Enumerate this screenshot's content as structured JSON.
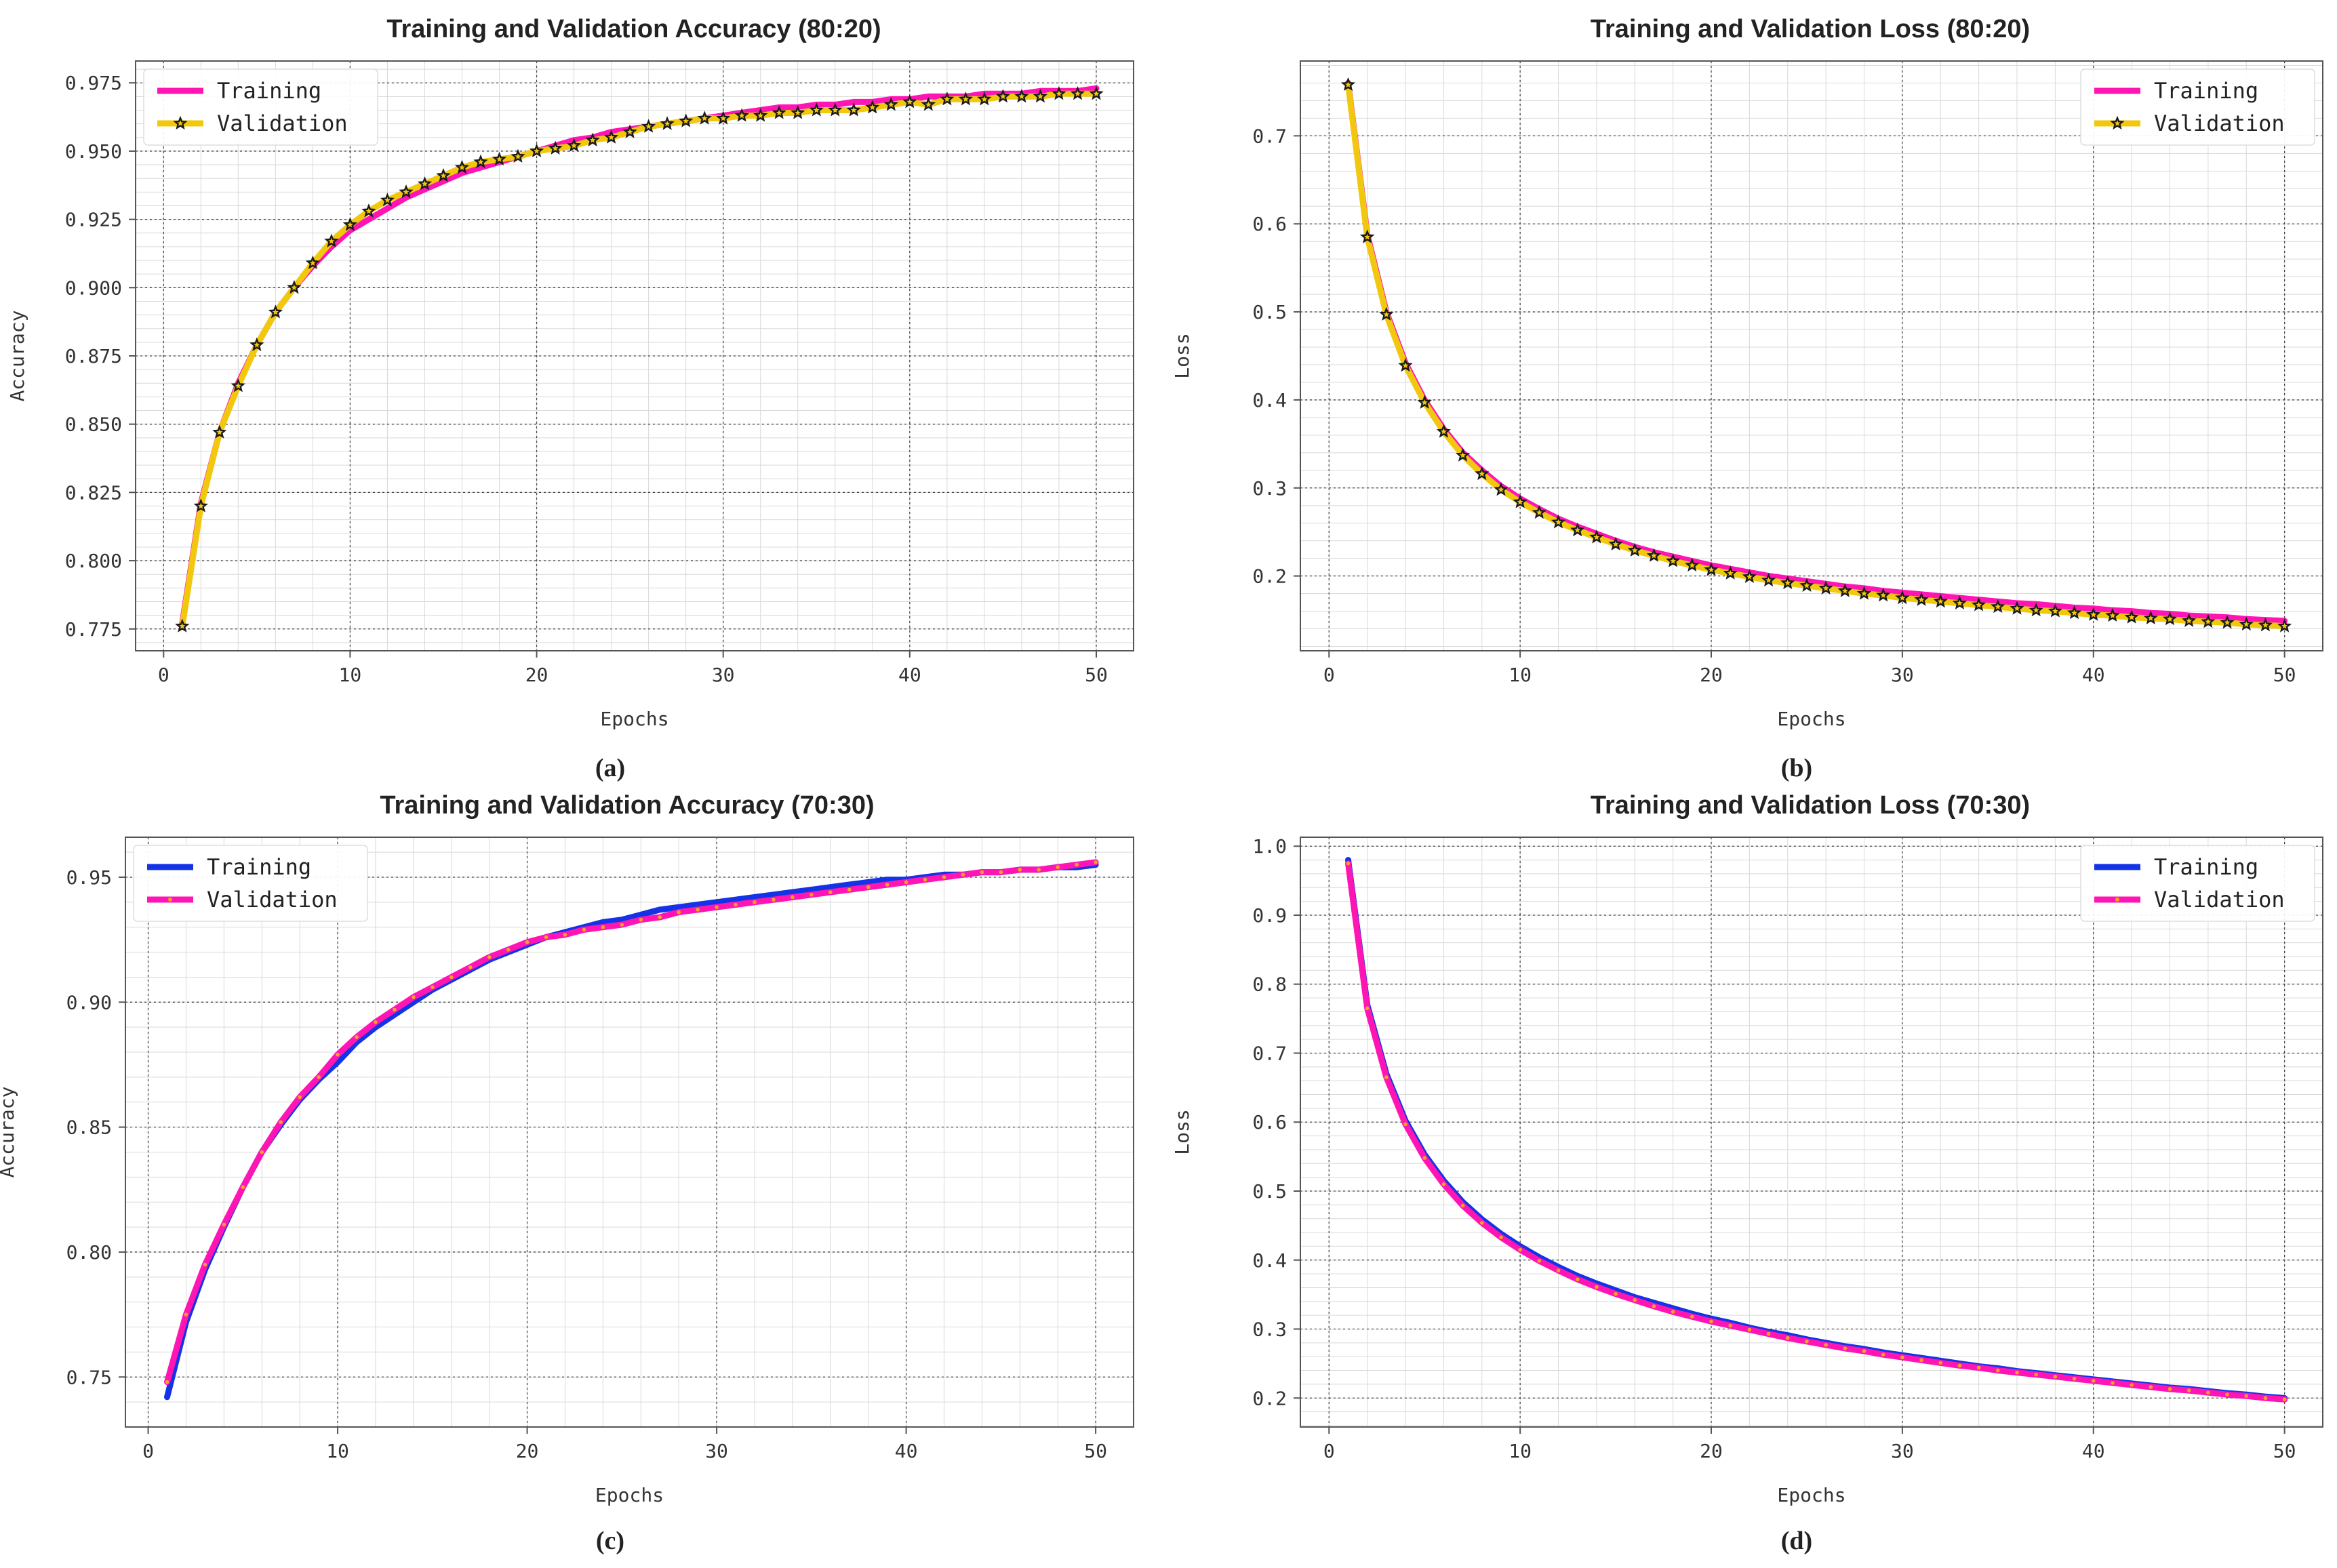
{
  "colors": {
    "magenta": "#ff14b4",
    "gold": "#f2c80f",
    "blue": "#1433e6",
    "marker_dark": "#1a1a1a",
    "marker_orange": "#f5a623"
  },
  "chart_data": [
    {
      "type": "line",
      "title": "Training and Validation Accuracy (80:20)",
      "caption": "(a)",
      "xlabel": "Epochs",
      "ylabel": "Accuracy",
      "xlim": [
        -1.5,
        52
      ],
      "ylim": [
        0.767,
        0.983
      ],
      "xticks": [
        0,
        10,
        20,
        30,
        40,
        50
      ],
      "xticklabels": [
        "0",
        "10",
        "20",
        "30",
        "40",
        "50"
      ],
      "yticks": [
        0.775,
        0.8,
        0.825,
        0.85,
        0.875,
        0.9,
        0.925,
        0.95,
        0.975
      ],
      "yticklabels": [
        "0.775",
        "0.800",
        "0.825",
        "0.850",
        "0.875",
        "0.900",
        "0.925",
        "0.950",
        "0.975"
      ],
      "legend_loc": "top-left",
      "x": [
        1,
        2,
        3,
        4,
        5,
        6,
        7,
        8,
        9,
        10,
        11,
        12,
        13,
        14,
        15,
        16,
        17,
        18,
        19,
        20,
        21,
        22,
        23,
        24,
        25,
        26,
        27,
        28,
        29,
        30,
        31,
        32,
        33,
        34,
        35,
        36,
        37,
        38,
        39,
        40,
        41,
        42,
        43,
        44,
        45,
        46,
        47,
        48,
        49,
        50
      ],
      "series": [
        {
          "name": "Training",
          "color": "#ff14b4",
          "marker": "none",
          "values": [
            0.777,
            0.821,
            0.847,
            0.865,
            0.879,
            0.891,
            0.9,
            0.908,
            0.915,
            0.921,
            0.925,
            0.929,
            0.933,
            0.936,
            0.939,
            0.942,
            0.944,
            0.946,
            0.948,
            0.95,
            0.952,
            0.954,
            0.955,
            0.957,
            0.958,
            0.959,
            0.96,
            0.961,
            0.962,
            0.963,
            0.964,
            0.965,
            0.966,
            0.966,
            0.967,
            0.967,
            0.968,
            0.968,
            0.969,
            0.969,
            0.97,
            0.97,
            0.97,
            0.971,
            0.971,
            0.971,
            0.972,
            0.972,
            0.972,
            0.973
          ]
        },
        {
          "name": "Validation",
          "color": "#f2c80f",
          "marker": "star",
          "values": [
            0.776,
            0.82,
            0.847,
            0.864,
            0.879,
            0.891,
            0.9,
            0.909,
            0.917,
            0.923,
            0.928,
            0.932,
            0.935,
            0.938,
            0.941,
            0.944,
            0.946,
            0.947,
            0.948,
            0.95,
            0.951,
            0.952,
            0.954,
            0.955,
            0.957,
            0.959,
            0.96,
            0.961,
            0.962,
            0.962,
            0.963,
            0.963,
            0.964,
            0.964,
            0.965,
            0.965,
            0.965,
            0.966,
            0.967,
            0.968,
            0.967,
            0.969,
            0.969,
            0.969,
            0.97,
            0.97,
            0.97,
            0.971,
            0.971,
            0.971
          ]
        }
      ]
    },
    {
      "type": "line",
      "title": "Training and Validation Loss (80:20)",
      "caption": "(b)",
      "xlabel": "Epochs",
      "ylabel": "Loss",
      "xlim": [
        -1.5,
        52
      ],
      "ylim": [
        0.115,
        0.785
      ],
      "xticks": [
        0,
        10,
        20,
        30,
        40,
        50
      ],
      "xticklabels": [
        "0",
        "10",
        "20",
        "30",
        "40",
        "50"
      ],
      "yticks": [
        0.2,
        0.3,
        0.4,
        0.5,
        0.6,
        0.7
      ],
      "yticklabels": [
        "0.2",
        "0.3",
        "0.4",
        "0.5",
        "0.6",
        "0.7"
      ],
      "legend_loc": "top-right",
      "x": [
        1,
        2,
        3,
        4,
        5,
        6,
        7,
        8,
        9,
        10,
        11,
        12,
        13,
        14,
        15,
        16,
        17,
        18,
        19,
        20,
        21,
        22,
        23,
        24,
        25,
        26,
        27,
        28,
        29,
        30,
        31,
        32,
        33,
        34,
        35,
        36,
        37,
        38,
        39,
        40,
        41,
        42,
        43,
        44,
        45,
        46,
        47,
        48,
        49,
        50
      ],
      "series": [
        {
          "name": "Training",
          "color": "#ff14b4",
          "marker": "none",
          "values": [
            0.76,
            0.588,
            0.5,
            0.442,
            0.4,
            0.367,
            0.34,
            0.32,
            0.302,
            0.288,
            0.276,
            0.265,
            0.256,
            0.248,
            0.24,
            0.233,
            0.227,
            0.222,
            0.217,
            0.212,
            0.208,
            0.204,
            0.2,
            0.197,
            0.194,
            0.191,
            0.188,
            0.186,
            0.183,
            0.181,
            0.179,
            0.177,
            0.175,
            0.173,
            0.171,
            0.169,
            0.168,
            0.166,
            0.164,
            0.163,
            0.161,
            0.16,
            0.158,
            0.157,
            0.155,
            0.154,
            0.153,
            0.151,
            0.15,
            0.149
          ]
        },
        {
          "name": "Validation",
          "color": "#f2c80f",
          "marker": "star",
          "values": [
            0.758,
            0.585,
            0.497,
            0.439,
            0.397,
            0.364,
            0.337,
            0.316,
            0.298,
            0.284,
            0.272,
            0.261,
            0.252,
            0.244,
            0.236,
            0.229,
            0.223,
            0.217,
            0.212,
            0.207,
            0.203,
            0.199,
            0.195,
            0.192,
            0.189,
            0.186,
            0.183,
            0.18,
            0.178,
            0.175,
            0.173,
            0.171,
            0.169,
            0.167,
            0.165,
            0.163,
            0.161,
            0.16,
            0.158,
            0.156,
            0.155,
            0.153,
            0.152,
            0.151,
            0.149,
            0.148,
            0.147,
            0.145,
            0.144,
            0.143
          ]
        }
      ]
    },
    {
      "type": "line",
      "title": "Training and Validation Accuracy (70:30)",
      "caption": "(c)",
      "xlabel": "Epochs",
      "ylabel": "Accuracy",
      "xlim": [
        -1.2,
        52
      ],
      "ylim": [
        0.73,
        0.966
      ],
      "xticks": [
        0,
        10,
        20,
        30,
        40,
        50
      ],
      "xticklabels": [
        "0",
        "10",
        "20",
        "30",
        "40",
        "50"
      ],
      "yticks": [
        0.75,
        0.8,
        0.85,
        0.9,
        0.95
      ],
      "yticklabels": [
        "0.75",
        "0.80",
        "0.85",
        "0.90",
        "0.95"
      ],
      "legend_loc": "top-left",
      "x": [
        1,
        2,
        3,
        4,
        5,
        6,
        7,
        8,
        9,
        10,
        11,
        12,
        13,
        14,
        15,
        16,
        17,
        18,
        19,
        20,
        21,
        22,
        23,
        24,
        25,
        26,
        27,
        28,
        29,
        30,
        31,
        32,
        33,
        34,
        35,
        36,
        37,
        38,
        39,
        40,
        41,
        42,
        43,
        44,
        45,
        46,
        47,
        48,
        49,
        50
      ],
      "series": [
        {
          "name": "Training",
          "color": "#1433e6",
          "marker": "none",
          "values": [
            0.742,
            0.772,
            0.793,
            0.81,
            0.826,
            0.84,
            0.851,
            0.861,
            0.869,
            0.876,
            0.884,
            0.89,
            0.895,
            0.9,
            0.905,
            0.909,
            0.913,
            0.917,
            0.92,
            0.923,
            0.926,
            0.928,
            0.93,
            0.932,
            0.933,
            0.935,
            0.937,
            0.938,
            0.939,
            0.94,
            0.941,
            0.942,
            0.943,
            0.944,
            0.945,
            0.946,
            0.947,
            0.948,
            0.949,
            0.949,
            0.95,
            0.951,
            0.951,
            0.952,
            0.952,
            0.953,
            0.953,
            0.954,
            0.954,
            0.955
          ]
        },
        {
          "name": "Validation",
          "color": "#ff14b4",
          "marker": "dot",
          "values": [
            0.748,
            0.775,
            0.795,
            0.811,
            0.826,
            0.84,
            0.852,
            0.862,
            0.87,
            0.879,
            0.886,
            0.892,
            0.897,
            0.902,
            0.906,
            0.91,
            0.914,
            0.918,
            0.921,
            0.924,
            0.926,
            0.927,
            0.929,
            0.93,
            0.931,
            0.933,
            0.934,
            0.936,
            0.937,
            0.938,
            0.939,
            0.94,
            0.941,
            0.942,
            0.943,
            0.944,
            0.945,
            0.946,
            0.947,
            0.948,
            0.949,
            0.95,
            0.951,
            0.952,
            0.952,
            0.953,
            0.953,
            0.954,
            0.955,
            0.956
          ]
        }
      ]
    },
    {
      "type": "line",
      "title": "Training and Validation Loss (70:30)",
      "caption": "(d)",
      "xlabel": "Epochs",
      "ylabel": "Loss",
      "xlim": [
        -1.5,
        52
      ],
      "ylim": [
        0.158,
        1.013
      ],
      "xticks": [
        0,
        10,
        20,
        30,
        40,
        50
      ],
      "xticklabels": [
        "0",
        "10",
        "20",
        "30",
        "40",
        "50"
      ],
      "yticks": [
        0.2,
        0.3,
        0.4,
        0.5,
        0.6,
        0.7,
        0.8,
        0.9,
        1.0
      ],
      "yticklabels": [
        "0.2",
        "0.3",
        "0.4",
        "0.5",
        "0.6",
        "0.7",
        "0.8",
        "0.9",
        "1.0"
      ],
      "legend_loc": "top-right",
      "x": [
        1,
        2,
        3,
        4,
        5,
        6,
        7,
        8,
        9,
        10,
        11,
        12,
        13,
        14,
        15,
        16,
        17,
        18,
        19,
        20,
        21,
        22,
        23,
        24,
        25,
        26,
        27,
        28,
        29,
        30,
        31,
        32,
        33,
        34,
        35,
        36,
        37,
        38,
        39,
        40,
        41,
        42,
        43,
        44,
        45,
        46,
        47,
        48,
        49,
        50
      ],
      "series": [
        {
          "name": "Training",
          "color": "#1433e6",
          "marker": "none",
          "values": [
            0.98,
            0.77,
            0.67,
            0.602,
            0.553,
            0.515,
            0.484,
            0.459,
            0.438,
            0.42,
            0.404,
            0.39,
            0.377,
            0.366,
            0.356,
            0.346,
            0.338,
            0.33,
            0.322,
            0.315,
            0.309,
            0.302,
            0.296,
            0.291,
            0.285,
            0.28,
            0.275,
            0.271,
            0.266,
            0.262,
            0.258,
            0.254,
            0.25,
            0.246,
            0.243,
            0.239,
            0.236,
            0.233,
            0.23,
            0.227,
            0.224,
            0.221,
            0.218,
            0.215,
            0.213,
            0.21,
            0.207,
            0.205,
            0.202,
            0.2
          ]
        },
        {
          "name": "Validation",
          "color": "#ff14b4",
          "marker": "dot",
          "values": [
            0.975,
            0.765,
            0.665,
            0.597,
            0.548,
            0.51,
            0.479,
            0.454,
            0.433,
            0.415,
            0.399,
            0.385,
            0.372,
            0.361,
            0.351,
            0.342,
            0.333,
            0.325,
            0.318,
            0.311,
            0.305,
            0.299,
            0.293,
            0.287,
            0.282,
            0.277,
            0.272,
            0.268,
            0.263,
            0.259,
            0.255,
            0.251,
            0.247,
            0.244,
            0.24,
            0.237,
            0.234,
            0.231,
            0.228,
            0.225,
            0.222,
            0.219,
            0.216,
            0.213,
            0.211,
            0.208,
            0.205,
            0.203,
            0.2,
            0.198
          ]
        }
      ]
    }
  ]
}
